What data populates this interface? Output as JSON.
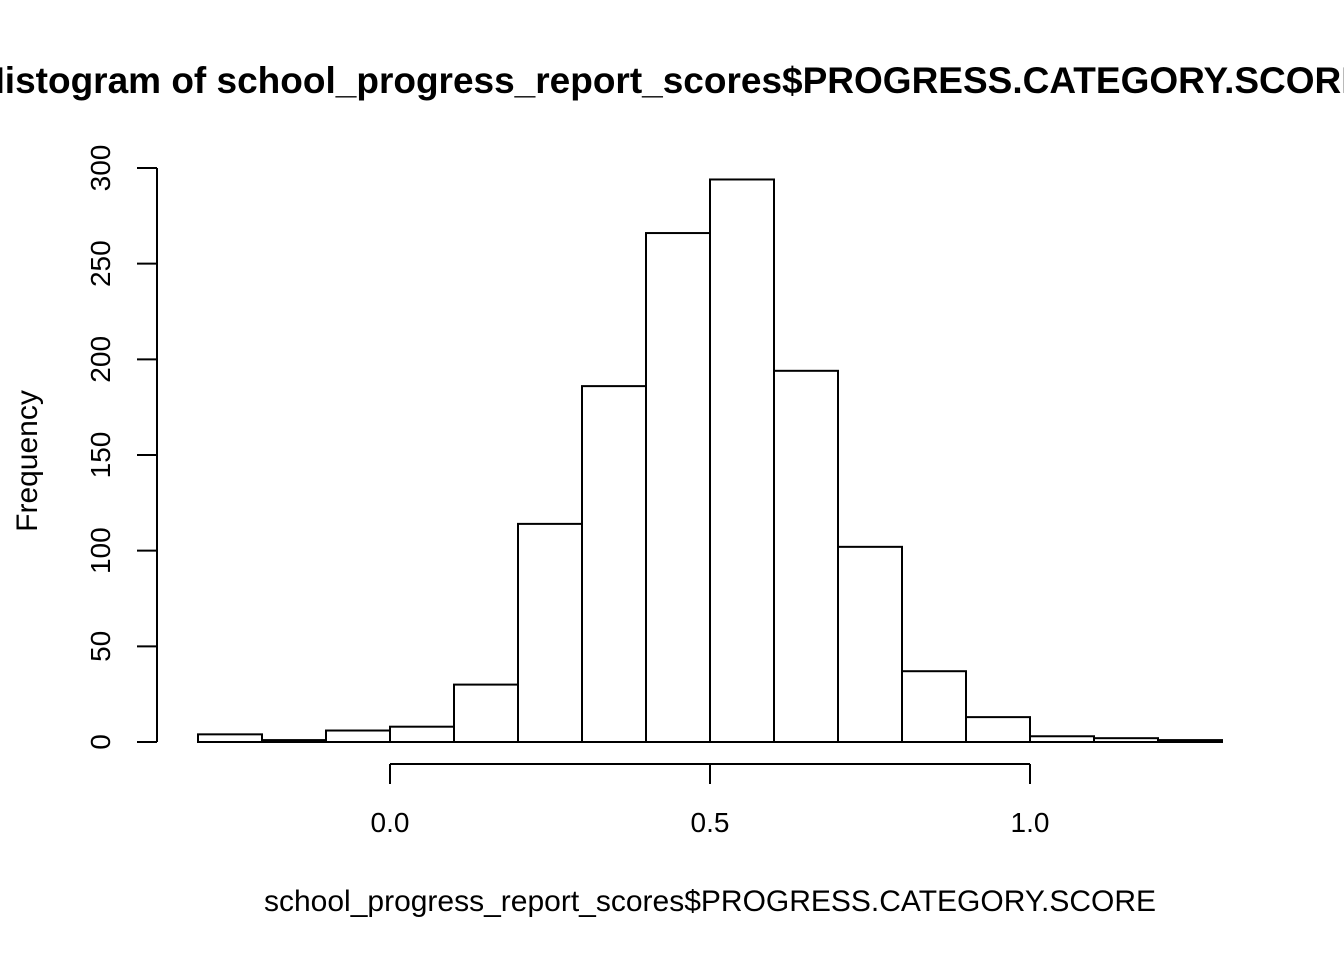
{
  "chart_data": {
    "type": "bar",
    "subtype": "histogram",
    "title": "Histogram of school_progress_report_scores$PROGRESS.CATEGORY.SCORE",
    "xlabel": "school_progress_report_scores$PROGRESS.CATEGORY.SCORE",
    "ylabel": "Frequency",
    "bins": [
      {
        "start": -0.3,
        "end": -0.2,
        "count": 4
      },
      {
        "start": -0.2,
        "end": -0.1,
        "count": 1
      },
      {
        "start": -0.1,
        "end": 0.0,
        "count": 6
      },
      {
        "start": 0.0,
        "end": 0.1,
        "count": 8
      },
      {
        "start": 0.1,
        "end": 0.2,
        "count": 30
      },
      {
        "start": 0.2,
        "end": 0.3,
        "count": 114
      },
      {
        "start": 0.3,
        "end": 0.4,
        "count": 186
      },
      {
        "start": 0.4,
        "end": 0.5,
        "count": 266
      },
      {
        "start": 0.5,
        "end": 0.6,
        "count": 294
      },
      {
        "start": 0.6,
        "end": 0.7,
        "count": 194
      },
      {
        "start": 0.7,
        "end": 0.8,
        "count": 102
      },
      {
        "start": 0.8,
        "end": 0.9,
        "count": 37
      },
      {
        "start": 0.9,
        "end": 1.0,
        "count": 13
      },
      {
        "start": 1.0,
        "end": 1.1,
        "count": 3
      },
      {
        "start": 1.1,
        "end": 1.2,
        "count": 2
      },
      {
        "start": 1.2,
        "end": 1.3,
        "count": 1
      }
    ],
    "xticks": [
      {
        "value": 0.0,
        "label": "0.0"
      },
      {
        "value": 0.5,
        "label": "0.5"
      },
      {
        "value": 1.0,
        "label": "1.0"
      }
    ],
    "yticks": [
      {
        "value": 0,
        "label": "0"
      },
      {
        "value": 50,
        "label": "50"
      },
      {
        "value": 100,
        "label": "100"
      },
      {
        "value": 150,
        "label": "150"
      },
      {
        "value": 200,
        "label": "200"
      },
      {
        "value": 250,
        "label": "250"
      },
      {
        "value": 300,
        "label": "300"
      }
    ],
    "xlim": [
      -0.3,
      1.3
    ],
    "ylim": [
      0,
      300
    ],
    "grid": false,
    "colors": {
      "bar_fill": "#ffffff",
      "bar_stroke": "#000000"
    }
  }
}
